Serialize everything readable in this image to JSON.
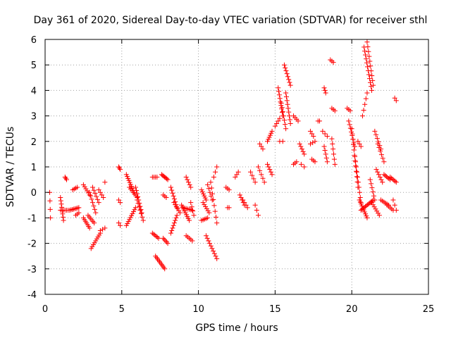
{
  "chart_data": {
    "type": "scatter",
    "title": "Day 361 of 2020, Sidereal Day-to-day VTEC variation (SDTVAR) for receiver sthl",
    "xlabel": "GPS time / hours",
    "ylabel": "SDTVAR / TECUs",
    "xlim": [
      0,
      25
    ],
    "ylim": [
      -4,
      6
    ],
    "xticks": [
      "0",
      "5",
      "10",
      "15",
      "20",
      "25"
    ],
    "yticks": [
      "-4",
      "-3",
      "-2",
      "-1",
      "0",
      "1",
      "2",
      "3",
      "4",
      "5",
      "6"
    ],
    "grid": true,
    "marker": "plus",
    "color": "#ff0000",
    "series": [
      {
        "name": "sthl",
        "segments": [
          {
            "x0": 0.3,
            "x1": 0.35,
            "y0": 0.0,
            "y1": -1.0,
            "n": 4
          },
          {
            "x0": 1.0,
            "x1": 1.2,
            "y0": -0.2,
            "y1": -1.1,
            "n": 8
          },
          {
            "x0": 1.0,
            "x1": 1.5,
            "y0": -0.7,
            "y1": -0.7,
            "n": 6
          },
          {
            "x0": 1.3,
            "x1": 1.4,
            "y0": 0.6,
            "y1": 0.5,
            "n": 3
          },
          {
            "x0": 1.6,
            "x1": 2.2,
            "y0": -0.7,
            "y1": -0.6,
            "n": 8
          },
          {
            "x0": 1.8,
            "x1": 2.1,
            "y0": 0.1,
            "y1": 0.2,
            "n": 4
          },
          {
            "x0": 2.0,
            "x1": 2.2,
            "y0": -0.9,
            "y1": -0.8,
            "n": 3
          },
          {
            "x0": 2.5,
            "x1": 2.9,
            "y0": 0.3,
            "y1": -0.1,
            "n": 6
          },
          {
            "x0": 2.5,
            "x1": 2.9,
            "y0": -1.0,
            "y1": -1.4,
            "n": 7
          },
          {
            "x0": 2.8,
            "x1": 3.2,
            "y0": -0.9,
            "y1": -1.2,
            "n": 6
          },
          {
            "x0": 2.9,
            "x1": 3.3,
            "y0": 0.0,
            "y1": -0.8,
            "n": 7
          },
          {
            "x0": 3.1,
            "x1": 3.5,
            "y0": 0.2,
            "y1": -0.4,
            "n": 6
          },
          {
            "x0": 3.0,
            "x1": 3.6,
            "y0": -2.2,
            "y1": -1.6,
            "n": 9
          },
          {
            "x0": 3.5,
            "x1": 3.8,
            "y0": 0.1,
            "y1": -0.2,
            "n": 4
          },
          {
            "x0": 3.6,
            "x1": 3.9,
            "y0": -1.5,
            "y1": -1.4,
            "n": 3
          },
          {
            "x0": 3.9,
            "x1": 3.9,
            "y0": 0.4,
            "y1": 0.4,
            "n": 1
          },
          {
            "x0": 4.8,
            "x1": 4.9,
            "y0": 1.0,
            "y1": 0.9,
            "n": 3
          },
          {
            "x0": 4.8,
            "x1": 4.9,
            "y0": -0.3,
            "y1": -0.4,
            "n": 2
          },
          {
            "x0": 4.8,
            "x1": 4.9,
            "y0": -1.2,
            "y1": -1.3,
            "n": 2
          },
          {
            "x0": 5.3,
            "x1": 5.8,
            "y0": 0.7,
            "y1": 0.0,
            "n": 10
          },
          {
            "x0": 5.3,
            "x1": 5.9,
            "y0": -1.3,
            "y1": -0.6,
            "n": 10
          },
          {
            "x0": 5.5,
            "x1": 6.0,
            "y0": 0.2,
            "y1": -0.2,
            "n": 7
          },
          {
            "x0": 5.9,
            "x1": 6.3,
            "y0": 0.2,
            "y1": -0.8,
            "n": 9
          },
          {
            "x0": 6.0,
            "x1": 6.4,
            "y0": -0.3,
            "y1": -1.1,
            "n": 7
          },
          {
            "x0": 7.0,
            "x1": 7.3,
            "y0": 0.6,
            "y1": 0.6,
            "n": 4
          },
          {
            "x0": 7.0,
            "x1": 7.4,
            "y0": -1.6,
            "y1": -1.8,
            "n": 6
          },
          {
            "x0": 7.2,
            "x1": 7.8,
            "y0": -2.5,
            "y1": -3.0,
            "n": 10
          },
          {
            "x0": 7.6,
            "x1": 8.0,
            "y0": 0.7,
            "y1": 0.5,
            "n": 7
          },
          {
            "x0": 7.7,
            "x1": 8.0,
            "y0": -1.8,
            "y1": -2.0,
            "n": 5
          },
          {
            "x0": 7.7,
            "x1": 7.9,
            "y0": -0.1,
            "y1": -0.2,
            "n": 3
          },
          {
            "x0": 8.2,
            "x1": 8.6,
            "y0": 0.2,
            "y1": -0.6,
            "n": 8
          },
          {
            "x0": 8.2,
            "x1": 8.6,
            "y0": -1.6,
            "y1": -0.9,
            "n": 8
          },
          {
            "x0": 8.4,
            "x1": 8.8,
            "y0": -0.4,
            "y1": -0.8,
            "n": 6
          },
          {
            "x0": 8.9,
            "x1": 9.4,
            "y0": -0.5,
            "y1": -1.1,
            "n": 9
          },
          {
            "x0": 9.0,
            "x1": 9.6,
            "y0": -0.6,
            "y1": -0.7,
            "n": 7
          },
          {
            "x0": 9.2,
            "x1": 9.5,
            "y0": 0.6,
            "y1": 0.2,
            "n": 5
          },
          {
            "x0": 9.2,
            "x1": 9.6,
            "y0": -1.7,
            "y1": -1.9,
            "n": 5
          },
          {
            "x0": 9.5,
            "x1": 9.7,
            "y0": -0.4,
            "y1": -0.9,
            "n": 4
          },
          {
            "x0": 10.2,
            "x1": 10.5,
            "y0": 0.1,
            "y1": -0.3,
            "n": 6
          },
          {
            "x0": 10.2,
            "x1": 10.6,
            "y0": -1.1,
            "y1": -1.0,
            "n": 5
          },
          {
            "x0": 10.3,
            "x1": 10.7,
            "y0": -0.4,
            "y1": -0.8,
            "n": 6
          },
          {
            "x0": 10.5,
            "x1": 11.2,
            "y0": -1.7,
            "y1": -2.6,
            "n": 10
          },
          {
            "x0": 10.6,
            "x1": 10.9,
            "y0": 0.3,
            "y1": -0.3,
            "n": 5
          },
          {
            "x0": 10.8,
            "x1": 11.2,
            "y0": 0.4,
            "y1": -1.2,
            "n": 8
          },
          {
            "x0": 11.0,
            "x1": 11.2,
            "y0": 0.6,
            "y1": 1.0,
            "n": 3
          },
          {
            "x0": 11.8,
            "x1": 12.0,
            "y0": 0.2,
            "y1": 0.1,
            "n": 3
          },
          {
            "x0": 11.9,
            "x1": 12.0,
            "y0": -0.6,
            "y1": -0.6,
            "n": 2
          },
          {
            "x0": 12.4,
            "x1": 12.6,
            "y0": 0.6,
            "y1": 0.8,
            "n": 3
          },
          {
            "x0": 12.7,
            "x1": 13.0,
            "y0": -0.1,
            "y1": -0.5,
            "n": 5
          },
          {
            "x0": 12.9,
            "x1": 13.2,
            "y0": -0.3,
            "y1": -0.6,
            "n": 4
          },
          {
            "x0": 13.4,
            "x1": 13.7,
            "y0": 0.8,
            "y1": 0.4,
            "n": 4
          },
          {
            "x0": 13.7,
            "x1": 13.9,
            "y0": -0.5,
            "y1": -0.9,
            "n": 3
          },
          {
            "x0": 13.9,
            "x1": 14.3,
            "y0": 1.0,
            "y1": 0.4,
            "n": 5
          },
          {
            "x0": 14.0,
            "x1": 14.2,
            "y0": 1.9,
            "y1": 1.7,
            "n": 3
          },
          {
            "x0": 14.5,
            "x1": 14.8,
            "y0": 1.1,
            "y1": 0.7,
            "n": 5
          },
          {
            "x0": 14.5,
            "x1": 14.8,
            "y0": 2.0,
            "y1": 2.4,
            "n": 6
          },
          {
            "x0": 15.0,
            "x1": 15.3,
            "y0": 2.6,
            "y1": 2.9,
            "n": 4
          },
          {
            "x0": 15.2,
            "x1": 15.5,
            "y0": 4.1,
            "y1": 3.0,
            "n": 9
          },
          {
            "x0": 15.3,
            "x1": 15.5,
            "y0": 2.0,
            "y1": 2.0,
            "n": 2
          },
          {
            "x0": 15.4,
            "x1": 15.7,
            "y0": 3.5,
            "y1": 2.5,
            "n": 7
          },
          {
            "x0": 15.6,
            "x1": 16.0,
            "y0": 5.0,
            "y1": 4.2,
            "n": 8
          },
          {
            "x0": 15.7,
            "x1": 16.0,
            "y0": 3.9,
            "y1": 2.7,
            "n": 9
          },
          {
            "x0": 16.2,
            "x1": 16.5,
            "y0": 3.0,
            "y1": 2.8,
            "n": 4
          },
          {
            "x0": 16.2,
            "x1": 16.4,
            "y0": 1.1,
            "y1": 1.2,
            "n": 3
          },
          {
            "x0": 16.6,
            "x1": 16.9,
            "y0": 1.9,
            "y1": 1.5,
            "n": 5
          },
          {
            "x0": 16.7,
            "x1": 16.9,
            "y0": 1.1,
            "y1": 1.0,
            "n": 2
          },
          {
            "x0": 17.3,
            "x1": 17.5,
            "y0": 2.4,
            "y1": 2.2,
            "n": 3
          },
          {
            "x0": 17.3,
            "x1": 17.6,
            "y0": 1.9,
            "y1": 2.0,
            "n": 3
          },
          {
            "x0": 17.4,
            "x1": 17.6,
            "y0": 1.3,
            "y1": 1.2,
            "n": 3
          },
          {
            "x0": 17.8,
            "x1": 17.9,
            "y0": 2.8,
            "y1": 2.8,
            "n": 2
          },
          {
            "x0": 18.2,
            "x1": 18.3,
            "y0": 4.1,
            "y1": 3.9,
            "n": 3
          },
          {
            "x0": 18.1,
            "x1": 18.4,
            "y0": 2.4,
            "y1": 2.2,
            "n": 3
          },
          {
            "x0": 18.2,
            "x1": 18.4,
            "y0": 1.8,
            "y1": 1.2,
            "n": 5
          },
          {
            "x0": 18.6,
            "x1": 18.8,
            "y0": 5.2,
            "y1": 5.1,
            "n": 3
          },
          {
            "x0": 18.7,
            "x1": 18.9,
            "y0": 3.3,
            "y1": 3.2,
            "n": 3
          },
          {
            "x0": 18.7,
            "x1": 18.9,
            "y0": 2.1,
            "y1": 1.1,
            "n": 6
          },
          {
            "x0": 19.7,
            "x1": 19.9,
            "y0": 3.3,
            "y1": 3.2,
            "n": 3
          },
          {
            "x0": 19.8,
            "x1": 20.2,
            "y0": 2.8,
            "y1": 1.8,
            "n": 8
          },
          {
            "x0": 20.0,
            "x1": 20.4,
            "y0": 2.5,
            "y1": 0.2,
            "n": 12
          },
          {
            "x0": 20.2,
            "x1": 20.6,
            "y0": 1.4,
            "y1": -0.4,
            "n": 10
          },
          {
            "x0": 20.4,
            "x1": 20.6,
            "y0": 2.0,
            "y1": 1.8,
            "n": 3
          },
          {
            "x0": 20.5,
            "x1": 21.0,
            "y0": -0.3,
            "y1": -1.0,
            "n": 10
          },
          {
            "x0": 20.6,
            "x1": 21.4,
            "y0": -0.7,
            "y1": -0.3,
            "n": 12
          },
          {
            "x0": 20.7,
            "x1": 21.0,
            "y0": 3.0,
            "y1": 3.9,
            "n": 5
          },
          {
            "x0": 20.8,
            "x1": 21.3,
            "y0": 5.7,
            "y1": 4.0,
            "n": 12
          },
          {
            "x0": 21.0,
            "x1": 21.4,
            "y0": 5.9,
            "y1": 4.2,
            "n": 10
          },
          {
            "x0": 21.2,
            "x1": 21.5,
            "y0": 0.5,
            "y1": -0.3,
            "n": 6
          },
          {
            "x0": 21.3,
            "x1": 21.8,
            "y0": -0.4,
            "y1": -0.9,
            "n": 7
          },
          {
            "x0": 21.5,
            "x1": 21.9,
            "y0": 2.4,
            "y1": 1.7,
            "n": 6
          },
          {
            "x0": 21.6,
            "x1": 22.0,
            "y0": 0.9,
            "y1": 0.4,
            "n": 6
          },
          {
            "x0": 21.7,
            "x1": 22.1,
            "y0": 1.9,
            "y1": 1.2,
            "n": 6
          },
          {
            "x0": 21.9,
            "x1": 22.4,
            "y0": -0.3,
            "y1": -0.5,
            "n": 6
          },
          {
            "x0": 22.1,
            "x1": 22.5,
            "y0": 0.7,
            "y1": 0.5,
            "n": 6
          },
          {
            "x0": 22.3,
            "x1": 22.7,
            "y0": -0.5,
            "y1": -0.7,
            "n": 5
          },
          {
            "x0": 22.5,
            "x1": 22.9,
            "y0": 0.6,
            "y1": 0.4,
            "n": 6
          },
          {
            "x0": 22.8,
            "x1": 22.9,
            "y0": 3.7,
            "y1": 3.6,
            "n": 2
          },
          {
            "x0": 22.7,
            "x1": 22.9,
            "y0": -0.3,
            "y1": -0.7,
            "n": 3
          }
        ]
      }
    ]
  }
}
